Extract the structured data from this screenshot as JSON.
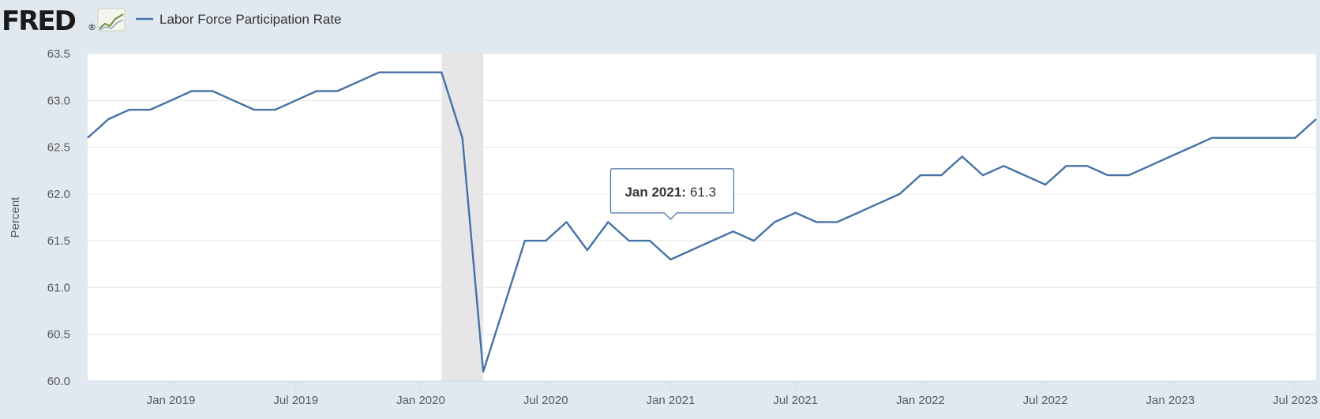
{
  "header": {
    "logo_text": "FRED",
    "logo_mark": "®"
  },
  "colors": {
    "series": "#4572a7",
    "plot_bg": "#ffffff",
    "page_bg": "#e1e9f0",
    "recession": "#e6e6e6",
    "grid": "#e6e6e6"
  },
  "chart_data": {
    "type": "line",
    "title": "",
    "xlabel": "",
    "ylabel": "Percent",
    "ylim": [
      60.0,
      63.5
    ],
    "yticks": [
      "60.0",
      "60.5",
      "61.0",
      "61.5",
      "62.0",
      "62.5",
      "63.0",
      "63.5"
    ],
    "xlim": [
      "2018-09",
      "2023-08"
    ],
    "xticks": [
      {
        "date": "2019-01",
        "label": "Jan 2019"
      },
      {
        "date": "2019-07",
        "label": "Jul 2019"
      },
      {
        "date": "2020-01",
        "label": "Jan 2020"
      },
      {
        "date": "2020-07",
        "label": "Jul 2020"
      },
      {
        "date": "2021-01",
        "label": "Jan 2021"
      },
      {
        "date": "2021-07",
        "label": "Jul 2021"
      },
      {
        "date": "2022-01",
        "label": "Jan 2022"
      },
      {
        "date": "2022-07",
        "label": "Jul 2022"
      },
      {
        "date": "2023-01",
        "label": "Jan 2023"
      },
      {
        "date": "2023-07",
        "label": "Jul 2023"
      }
    ],
    "grid": true,
    "legend": "top-left",
    "recession": {
      "start": "2020-02",
      "end": "2020-04"
    },
    "series": [
      {
        "name": "Labor Force Participation Rate",
        "color": "#4572a7",
        "x": [
          "2018-09",
          "2018-10",
          "2018-11",
          "2018-12",
          "2019-01",
          "2019-02",
          "2019-03",
          "2019-04",
          "2019-05",
          "2019-06",
          "2019-07",
          "2019-08",
          "2019-09",
          "2019-10",
          "2019-11",
          "2019-12",
          "2020-01",
          "2020-02",
          "2020-03",
          "2020-04",
          "2020-05",
          "2020-06",
          "2020-07",
          "2020-08",
          "2020-09",
          "2020-10",
          "2020-11",
          "2020-12",
          "2021-01",
          "2021-02",
          "2021-03",
          "2021-04",
          "2021-05",
          "2021-06",
          "2021-07",
          "2021-08",
          "2021-09",
          "2021-10",
          "2021-11",
          "2021-12",
          "2022-01",
          "2022-02",
          "2022-03",
          "2022-04",
          "2022-05",
          "2022-06",
          "2022-07",
          "2022-08",
          "2022-09",
          "2022-10",
          "2022-11",
          "2022-12",
          "2023-01",
          "2023-02",
          "2023-03",
          "2023-04",
          "2023-05",
          "2023-06",
          "2023-07",
          "2023-08"
        ],
        "values": [
          62.6,
          62.8,
          62.9,
          62.9,
          63.0,
          63.1,
          63.1,
          63.0,
          62.9,
          62.9,
          63.0,
          63.1,
          63.1,
          63.2,
          63.3,
          63.3,
          63.3,
          63.3,
          62.6,
          60.1,
          60.8,
          61.5,
          61.5,
          61.7,
          61.4,
          61.7,
          61.5,
          61.5,
          61.3,
          61.4,
          61.5,
          61.6,
          61.5,
          61.7,
          61.8,
          61.7,
          61.7,
          61.8,
          61.9,
          62.0,
          62.2,
          62.2,
          62.4,
          62.2,
          62.3,
          62.2,
          62.1,
          62.3,
          62.3,
          62.2,
          62.2,
          62.3,
          62.4,
          62.5,
          62.6,
          62.6,
          62.6,
          62.6,
          62.6,
          62.8
        ]
      }
    ],
    "tooltip": {
      "date": "Jan 2021",
      "value": "61.3",
      "at": "2021-01"
    }
  }
}
